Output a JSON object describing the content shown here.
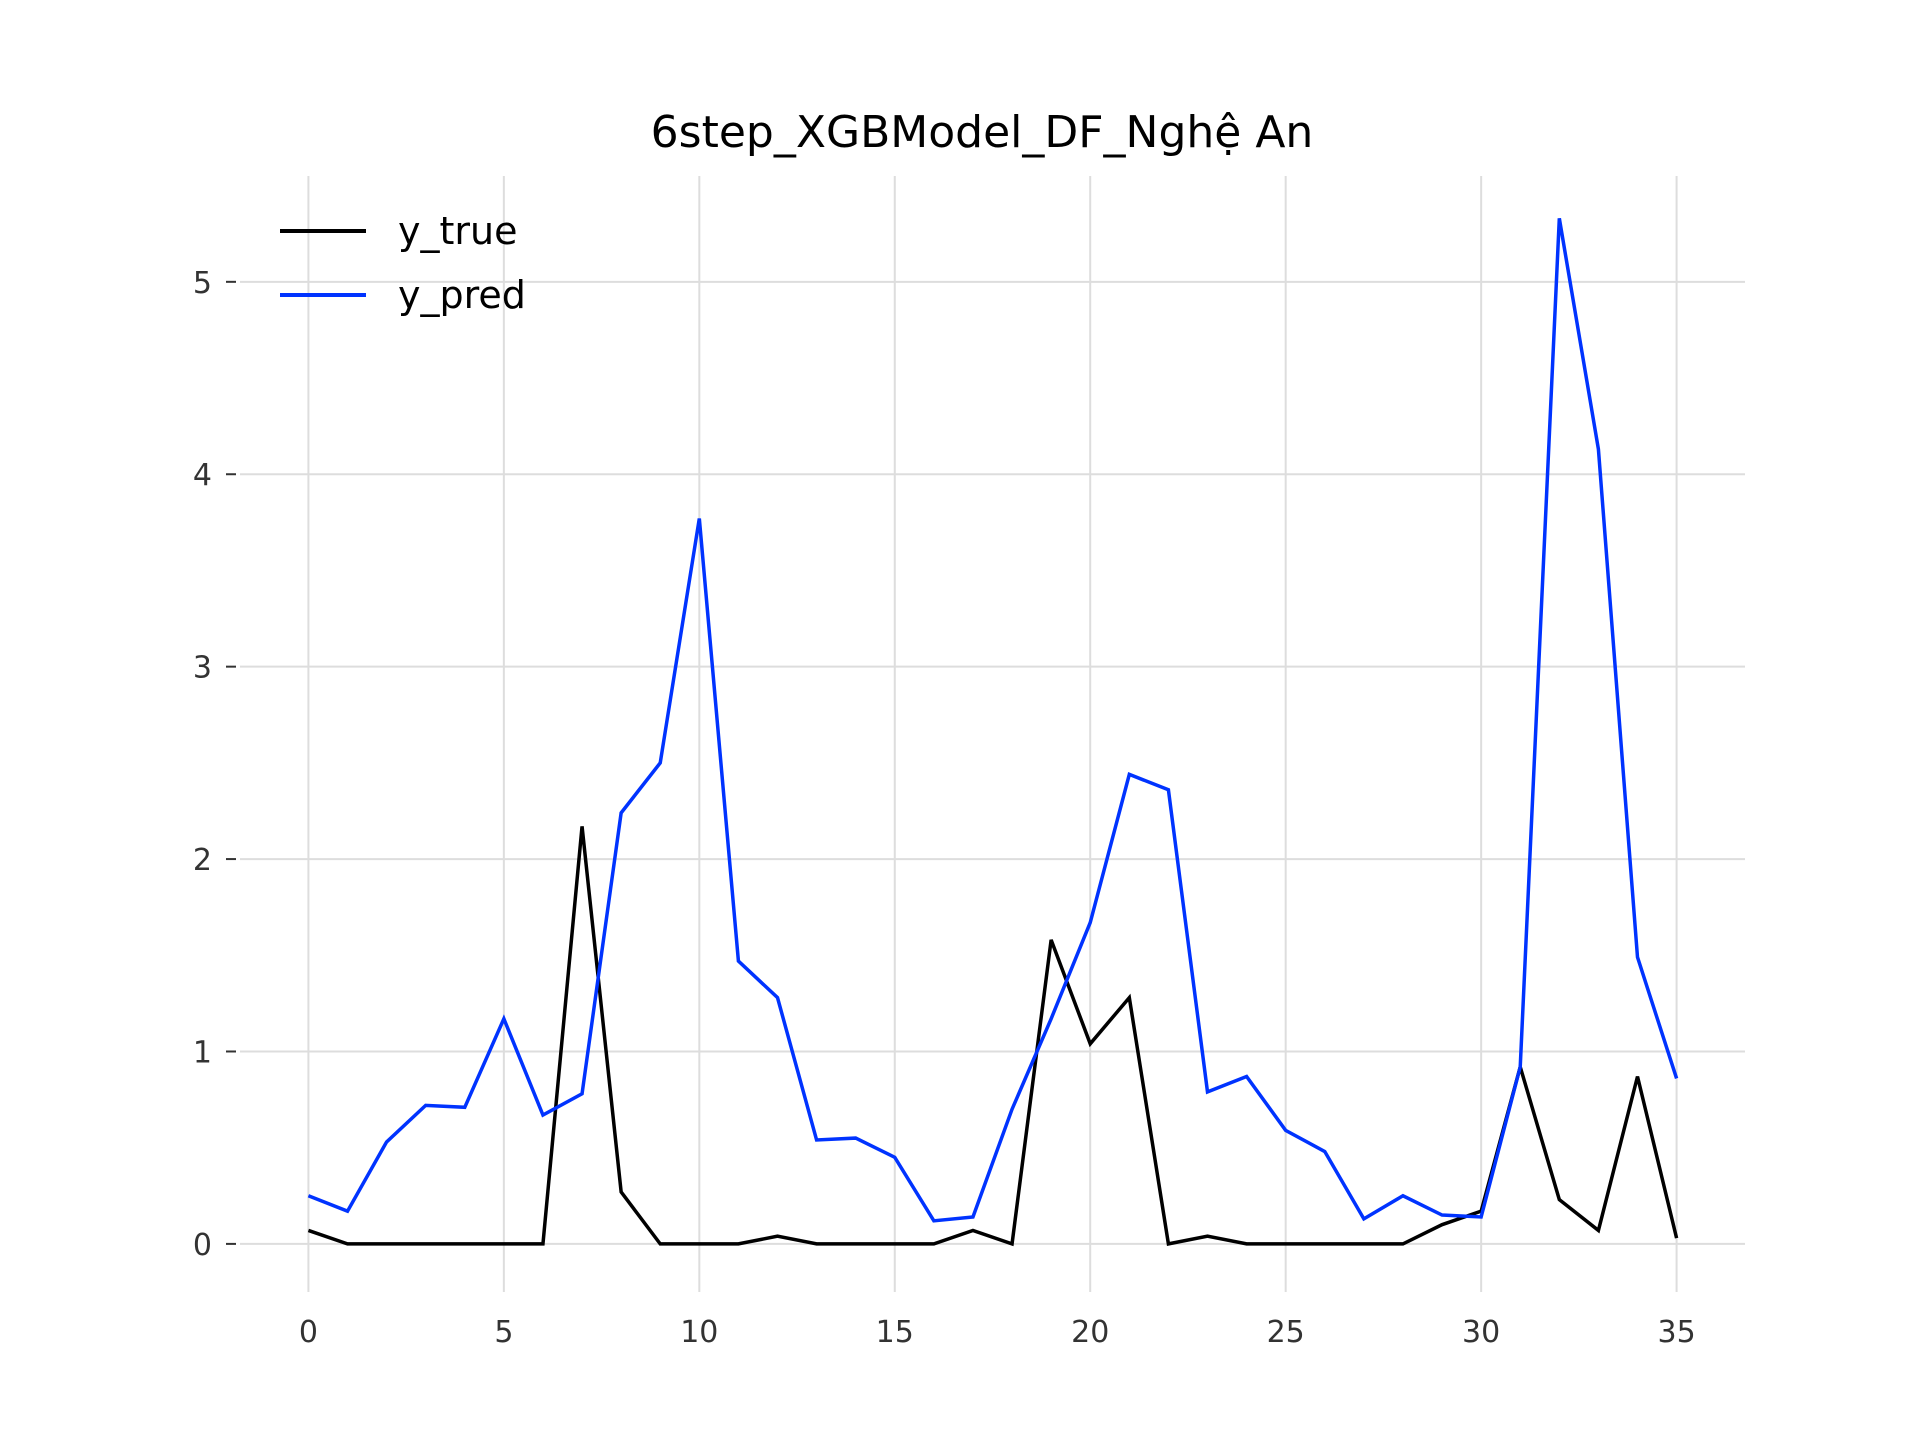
{
  "chart_data": {
    "type": "line",
    "title": "6step_XGBModel_DF_Nghệ An",
    "xlabel": "",
    "ylabel": "",
    "xlim": [
      -1.75,
      36.75
    ],
    "ylim": [
      -0.25,
      5.55
    ],
    "xticks": [
      0,
      5,
      10,
      15,
      20,
      25,
      30,
      35
    ],
    "yticks": [
      0,
      1,
      2,
      3,
      4,
      5
    ],
    "grid": true,
    "legend_position": "top-left",
    "x": [
      0,
      1,
      2,
      3,
      4,
      5,
      6,
      7,
      8,
      9,
      10,
      11,
      12,
      13,
      14,
      15,
      16,
      17,
      18,
      19,
      20,
      21,
      22,
      23,
      24,
      25,
      26,
      27,
      28,
      29,
      30,
      31,
      32,
      33,
      34,
      35
    ],
    "series": [
      {
        "name": "y_true",
        "color": "#000000",
        "values": [
          0.07,
          0,
          0,
          0,
          0,
          0,
          0,
          2.17,
          0.27,
          0,
          0,
          0,
          0.04,
          0,
          0,
          0,
          0,
          0.07,
          0,
          1.58,
          1.04,
          1.28,
          0,
          0.04,
          0,
          0,
          0,
          0,
          0,
          0.1,
          0.17,
          0.92,
          0.23,
          0.07,
          0.87,
          0.03
        ]
      },
      {
        "name": "y_pred",
        "color": "#0033ff",
        "values": [
          0.25,
          0.17,
          0.53,
          0.72,
          0.71,
          1.17,
          0.67,
          0.78,
          2.24,
          2.5,
          3.77,
          1.47,
          1.28,
          0.54,
          0.55,
          0.45,
          0.12,
          0.14,
          0.7,
          1.17,
          1.67,
          2.44,
          2.36,
          0.79,
          0.87,
          0.59,
          0.48,
          0.13,
          0.25,
          0.15,
          0.14,
          0.92,
          5.33,
          4.13,
          1.49,
          0.86
        ]
      }
    ]
  }
}
